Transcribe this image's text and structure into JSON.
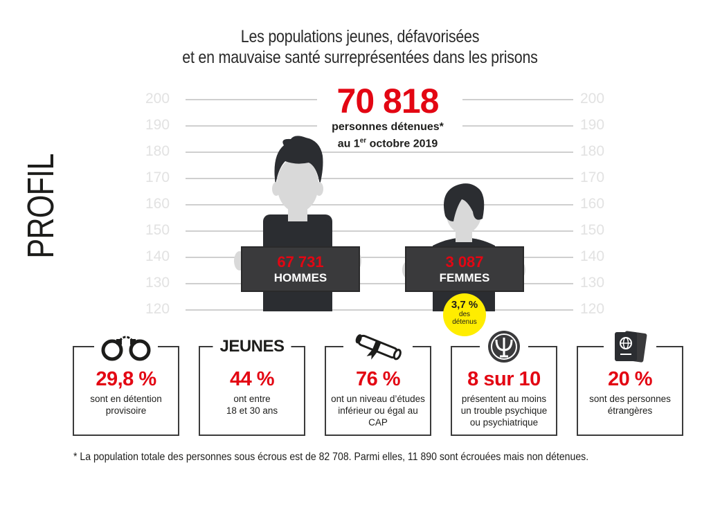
{
  "title": {
    "line1": "Les populations jeunes, défavorisées",
    "line2": "et en mauvaise santé surreprésentées dans les prisons"
  },
  "side_label": "PROFIL",
  "height_scale": {
    "ticks": [
      "200",
      "190",
      "180",
      "170",
      "160",
      "150",
      "140",
      "130",
      "120"
    ]
  },
  "total": {
    "value": "70 818",
    "label_line1": "personnes détenues*",
    "label_line2_pre": "au 1",
    "label_line2_sup": "er",
    "label_line2_post": " octobre 2019"
  },
  "men": {
    "value": "67 731",
    "label": "HOMMES"
  },
  "women": {
    "value": "3 087",
    "label": "FEMMES"
  },
  "women_badge": {
    "percent": "3,7 %",
    "caption_line1": "des",
    "caption_line2": "détenus"
  },
  "cards": [
    {
      "icon": "handcuffs-icon",
      "value": "29,8 %",
      "desc": [
        "sont en détention",
        "provisoire"
      ]
    },
    {
      "icon": "word",
      "word": "JEUNES",
      "value": "44 %",
      "desc": [
        "ont entre",
        "18 et 30 ans"
      ]
    },
    {
      "icon": "diploma-icon",
      "value": "76 %",
      "desc": [
        "ont un niveau d’études",
        "inférieur ou égal au CAP"
      ]
    },
    {
      "icon": "psi-icon",
      "value": "8 sur 10",
      "desc": [
        "présentent au moins",
        "un trouble psychique",
        "ou psychiatrique"
      ]
    },
    {
      "icon": "passport-icon",
      "value": "20 %",
      "desc": [
        "sont des personnes",
        "étrangères"
      ]
    }
  ],
  "footnote": "* La population totale des personnes sous écrous est de 82 708. Parmi elles, 11 890 sont écrouées mais non détenues.",
  "colors": {
    "accent": "#e30613",
    "dark": "#3a3a3c",
    "badge": "#ffed00",
    "face": "#d9d9d9",
    "hair": "#2b2d31"
  }
}
